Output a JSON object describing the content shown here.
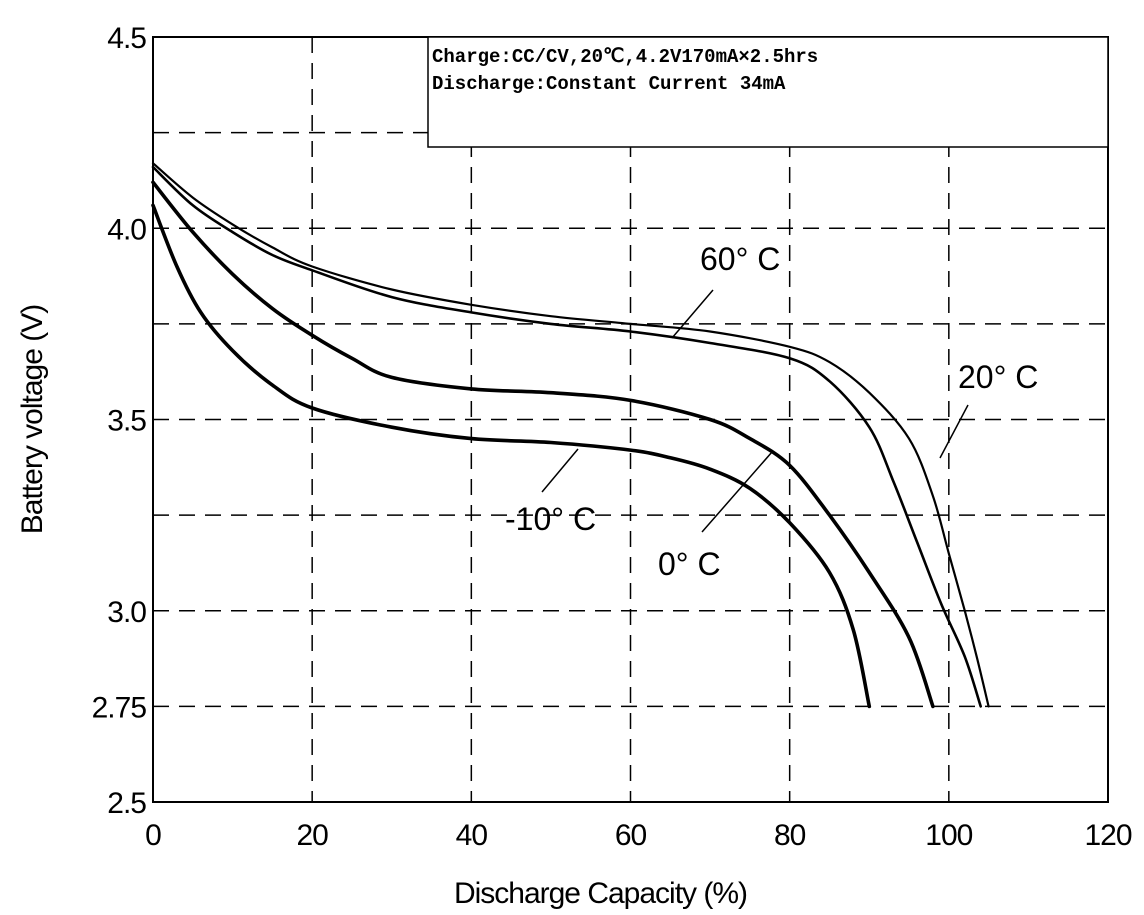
{
  "chart_data": {
    "type": "line",
    "xlabel": "Discharge Capacity (%)",
    "ylabel": "Battery voltage (V)",
    "xlim": [
      0,
      120
    ],
    "ylim": [
      2.5,
      4.5
    ],
    "x_ticks": [
      "0",
      "20",
      "40",
      "60",
      "80",
      "100",
      "120"
    ],
    "y_ticks": [
      {
        "value": 2.5,
        "label": "2.5"
      },
      {
        "value": 2.75,
        "label": "2.75"
      },
      {
        "value": 3.0,
        "label": "3.0"
      },
      {
        "value": 3.5,
        "label": "3.5"
      },
      {
        "value": 4.0,
        "label": "4.0"
      },
      {
        "value": 4.5,
        "label": "4.5"
      }
    ],
    "grid": true,
    "annotation_box": {
      "line1": "Charge:CC/CV,20℃,4.2V170mA×2.5hrs",
      "line2": "Discharge:Constant Current 34mA"
    },
    "series": [
      {
        "name": "60° C",
        "values": [
          [
            0,
            4.17
          ],
          [
            5,
            4.08
          ],
          [
            10,
            4.01
          ],
          [
            15,
            3.95
          ],
          [
            20,
            3.9
          ],
          [
            30,
            3.84
          ],
          [
            40,
            3.8
          ],
          [
            50,
            3.77
          ],
          [
            60,
            3.75
          ],
          [
            70,
            3.73
          ],
          [
            80,
            3.69
          ],
          [
            85,
            3.65
          ],
          [
            90,
            3.57
          ],
          [
            95,
            3.45
          ],
          [
            98,
            3.3
          ],
          [
            100,
            3.15
          ],
          [
            102,
            3.0
          ],
          [
            103.5,
            2.88
          ],
          [
            105,
            2.75
          ]
        ]
      },
      {
        "name": "20° C",
        "values": [
          [
            0,
            4.16
          ],
          [
            5,
            4.06
          ],
          [
            10,
            3.99
          ],
          [
            15,
            3.93
          ],
          [
            20,
            3.89
          ],
          [
            30,
            3.82
          ],
          [
            40,
            3.78
          ],
          [
            50,
            3.75
          ],
          [
            60,
            3.73
          ],
          [
            70,
            3.7
          ],
          [
            80,
            3.66
          ],
          [
            85,
            3.6
          ],
          [
            90,
            3.48
          ],
          [
            93,
            3.34
          ],
          [
            96,
            3.18
          ],
          [
            99,
            3.02
          ],
          [
            102,
            2.88
          ],
          [
            104,
            2.75
          ]
        ]
      },
      {
        "name": "0° C",
        "values": [
          [
            0,
            4.12
          ],
          [
            5,
            3.99
          ],
          [
            10,
            3.88
          ],
          [
            15,
            3.79
          ],
          [
            20,
            3.72
          ],
          [
            25,
            3.66
          ],
          [
            30,
            3.61
          ],
          [
            40,
            3.58
          ],
          [
            50,
            3.57
          ],
          [
            60,
            3.55
          ],
          [
            70,
            3.5
          ],
          [
            75,
            3.45
          ],
          [
            80,
            3.38
          ],
          [
            85,
            3.25
          ],
          [
            90,
            3.1
          ],
          [
            95,
            2.93
          ],
          [
            98,
            2.75
          ]
        ]
      },
      {
        "name": "-10° C",
        "values": [
          [
            0,
            4.06
          ],
          [
            3,
            3.9
          ],
          [
            6,
            3.78
          ],
          [
            10,
            3.68
          ],
          [
            15,
            3.59
          ],
          [
            20,
            3.53
          ],
          [
            30,
            3.48
          ],
          [
            40,
            3.45
          ],
          [
            50,
            3.44
          ],
          [
            60,
            3.42
          ],
          [
            65,
            3.4
          ],
          [
            70,
            3.37
          ],
          [
            75,
            3.32
          ],
          [
            80,
            3.23
          ],
          [
            85,
            3.1
          ],
          [
            88,
            2.95
          ],
          [
            90,
            2.75
          ]
        ]
      }
    ],
    "curve_labels": [
      "60° C",
      "20° C",
      "0° C",
      "-10° C"
    ]
  }
}
